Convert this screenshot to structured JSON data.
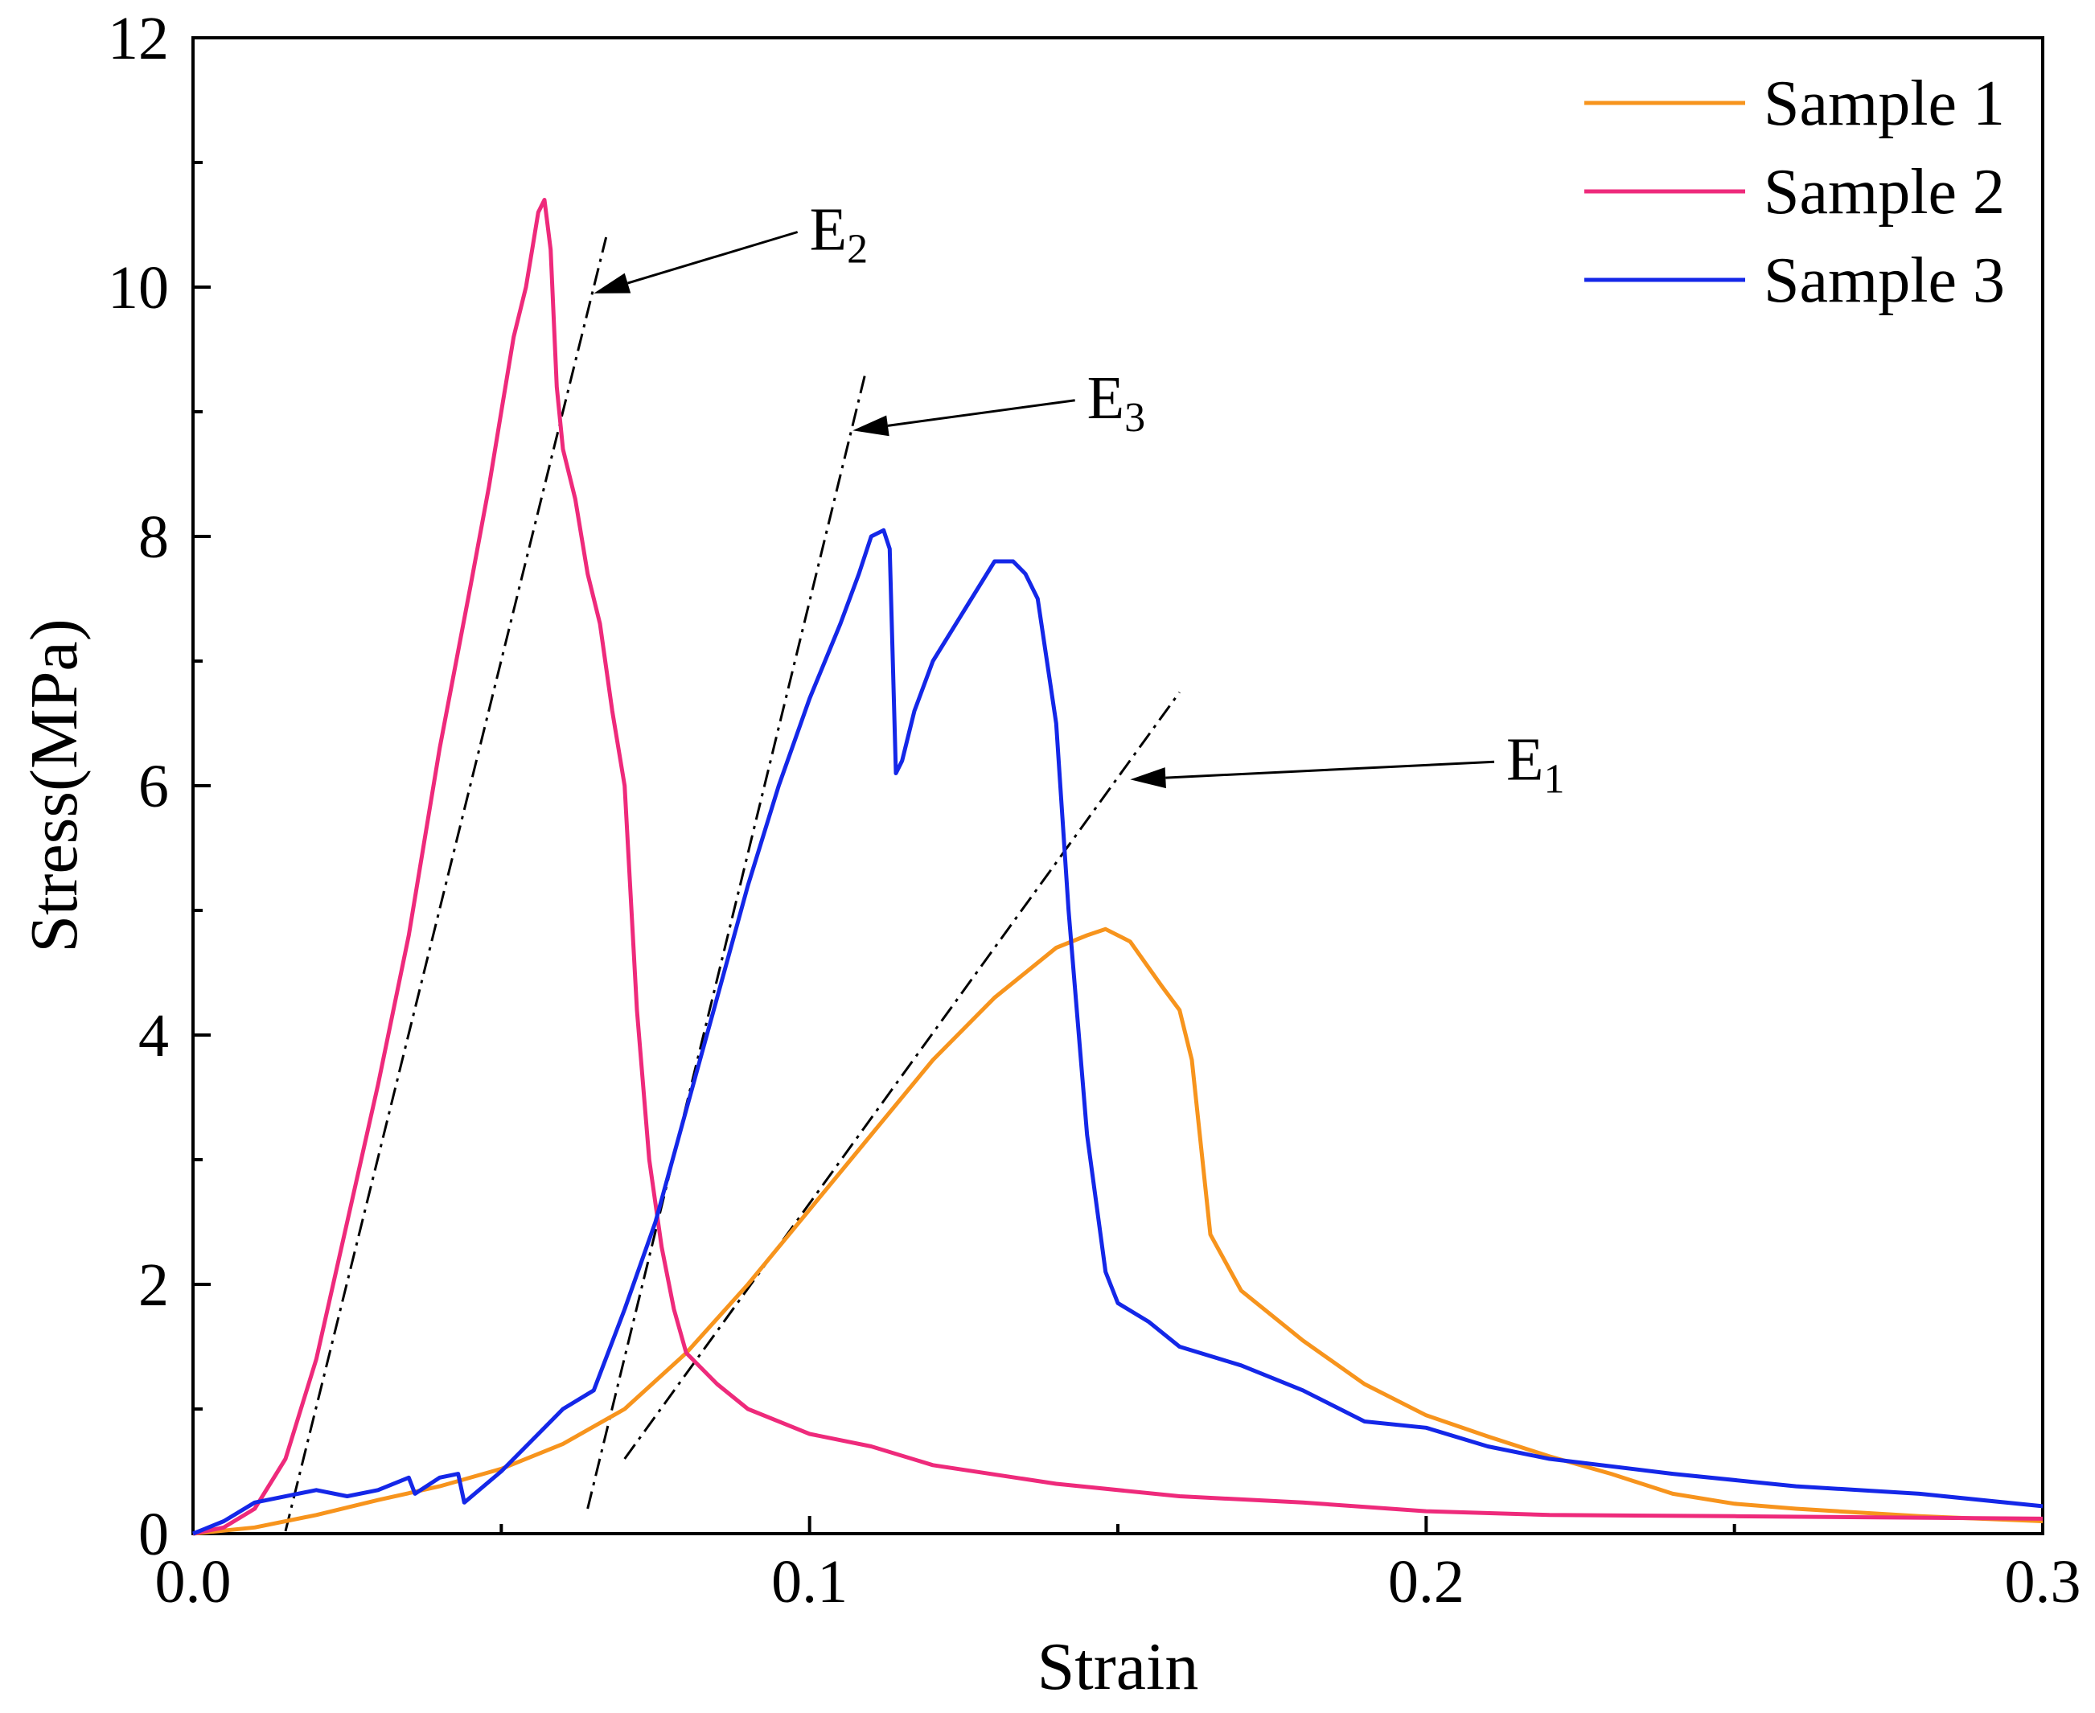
{
  "chart_data": {
    "type": "line",
    "title": "",
    "xlabel": "Strain",
    "ylabel": "Stress(MPa)",
    "xlim": [
      0,
      0.3
    ],
    "ylim": [
      0,
      12
    ],
    "xticks": [
      {
        "value": 0.0,
        "label": "0.0"
      },
      {
        "value": 0.1,
        "label": "0.1"
      },
      {
        "value": 0.2,
        "label": "0.2"
      },
      {
        "value": 0.3,
        "label": "0.3"
      }
    ],
    "yticks": [
      {
        "value": 0,
        "label": "0"
      },
      {
        "value": 2,
        "label": "2"
      },
      {
        "value": 4,
        "label": "4"
      },
      {
        "value": 6,
        "label": "6"
      },
      {
        "value": 8,
        "label": "8"
      },
      {
        "value": 10,
        "label": "10"
      },
      {
        "value": 12,
        "label": "12"
      }
    ],
    "grid": false,
    "legend_position": "top-right",
    "series": [
      {
        "name": "Sample 1",
        "color": "#f7941d",
        "x": [
          0,
          0.01,
          0.02,
          0.03,
          0.04,
          0.05,
          0.06,
          0.07,
          0.08,
          0.09,
          0.1,
          0.11,
          0.12,
          0.13,
          0.14,
          0.145,
          0.148,
          0.152,
          0.157,
          0.16,
          0.162,
          0.165,
          0.17,
          0.18,
          0.19,
          0.2,
          0.21,
          0.22,
          0.23,
          0.24,
          0.25,
          0.26,
          0.28,
          0.3
        ],
        "y": [
          0,
          0.05,
          0.15,
          0.27,
          0.38,
          0.52,
          0.72,
          1.0,
          1.45,
          2.0,
          2.6,
          3.2,
          3.8,
          4.3,
          4.7,
          4.8,
          4.85,
          4.75,
          4.4,
          4.2,
          3.8,
          2.4,
          1.95,
          1.55,
          1.2,
          0.95,
          0.78,
          0.62,
          0.48,
          0.32,
          0.24,
          0.2,
          0.14,
          0.1
        ]
      },
      {
        "name": "Sample 2",
        "color": "#ee2a7b",
        "x": [
          0,
          0.005,
          0.01,
          0.015,
          0.02,
          0.025,
          0.03,
          0.035,
          0.04,
          0.045,
          0.048,
          0.05,
          0.052,
          0.054,
          0.055,
          0.056,
          0.057,
          0.058,
          0.059,
          0.06,
          0.062,
          0.064,
          0.066,
          0.068,
          0.07,
          0.072,
          0.074,
          0.076,
          0.078,
          0.08,
          0.085,
          0.09,
          0.1,
          0.11,
          0.12,
          0.14,
          0.16,
          0.18,
          0.2,
          0.22,
          0.25,
          0.3
        ],
        "y": [
          0,
          0.05,
          0.2,
          0.6,
          1.4,
          2.5,
          3.6,
          4.8,
          6.3,
          7.6,
          8.4,
          9.0,
          9.6,
          10.0,
          10.3,
          10.6,
          10.7,
          10.3,
          9.2,
          8.7,
          8.3,
          7.7,
          7.3,
          6.6,
          6.0,
          4.2,
          3.0,
          2.3,
          1.8,
          1.45,
          1.2,
          1.0,
          0.8,
          0.7,
          0.55,
          0.4,
          0.3,
          0.25,
          0.18,
          0.15,
          0.14,
          0.12
        ]
      },
      {
        "name": "Sample 3",
        "color": "#1427e8",
        "x": [
          0,
          0.005,
          0.01,
          0.02,
          0.025,
          0.03,
          0.035,
          0.036,
          0.04,
          0.043,
          0.044,
          0.05,
          0.055,
          0.06,
          0.065,
          0.07,
          0.075,
          0.08,
          0.085,
          0.09,
          0.095,
          0.1,
          0.105,
          0.108,
          0.11,
          0.112,
          0.113,
          0.114,
          0.115,
          0.117,
          0.12,
          0.125,
          0.13,
          0.133,
          0.135,
          0.137,
          0.14,
          0.142,
          0.145,
          0.148,
          0.15,
          0.155,
          0.16,
          0.17,
          0.18,
          0.19,
          0.2,
          0.21,
          0.22,
          0.24,
          0.26,
          0.28,
          0.3
        ],
        "y": [
          0,
          0.1,
          0.25,
          0.35,
          0.3,
          0.35,
          0.45,
          0.32,
          0.45,
          0.48,
          0.25,
          0.5,
          0.75,
          1.0,
          1.15,
          1.8,
          2.5,
          3.4,
          4.3,
          5.2,
          6.0,
          6.7,
          7.3,
          7.7,
          8.0,
          8.05,
          7.9,
          6.1,
          6.2,
          6.6,
          7.0,
          7.4,
          7.8,
          7.8,
          7.7,
          7.5,
          6.5,
          5.0,
          3.2,
          2.1,
          1.85,
          1.7,
          1.5,
          1.35,
          1.15,
          0.9,
          0.85,
          0.7,
          0.6,
          0.48,
          0.38,
          0.32,
          0.22
        ]
      }
    ],
    "fit_lines": [
      {
        "name": "E1",
        "label": "E",
        "subscript": "1",
        "x": [
          0.07,
          0.16
        ],
        "y": [
          0.6,
          6.75
        ],
        "label_at": [
          0.213,
          6.05
        ],
        "arrow_tip": [
          0.152,
          6.05
        ]
      },
      {
        "name": "E2",
        "label": "E",
        "subscript": "2",
        "x": [
          0.015,
          0.067
        ],
        "y": [
          0.02,
          10.4
        ],
        "label_at": [
          0.1,
          10.3
        ],
        "arrow_tip": [
          0.065,
          9.95
        ]
      },
      {
        "name": "E3",
        "label": "E",
        "subscript": "3",
        "x": [
          0.064,
          0.109
        ],
        "y": [
          0.2,
          9.3
        ],
        "label_at": [
          0.145,
          8.95
        ],
        "arrow_tip": [
          0.107,
          8.85
        ]
      }
    ]
  }
}
